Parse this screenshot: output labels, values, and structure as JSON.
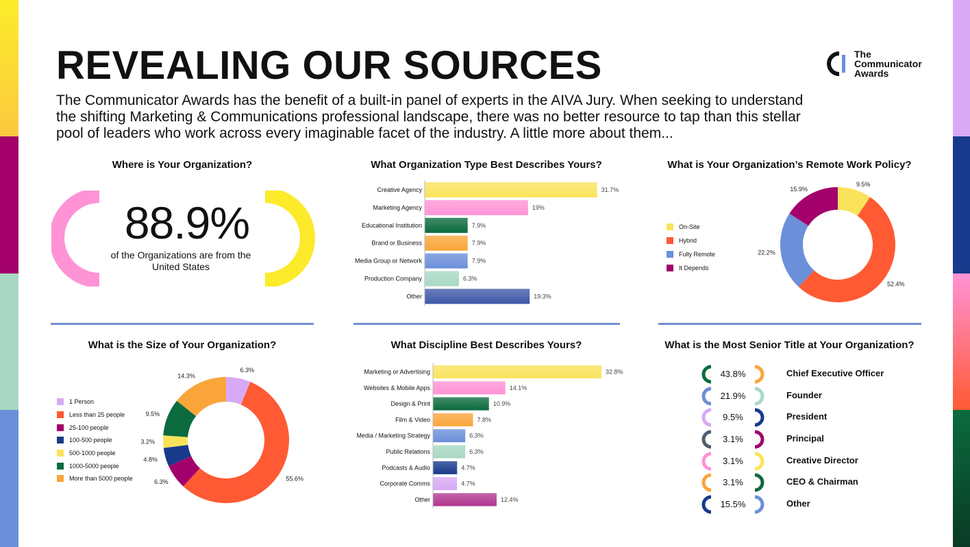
{
  "header": {
    "title": "REVEALING OUR SOURCES",
    "intro": "The Communicator Awards has the benefit of a built-in panel of experts in the AIVA Jury. When seeking to understand the shifting Marketing & Communications professional landscape, there was no better resource to tap than this stellar pool of leaders who work across every imaginable facet of the industry. A little more about them...",
    "logo_lines": [
      "The",
      "Communicator",
      "Awards"
    ]
  },
  "colors": {
    "yellow": "#fae35b",
    "orange_red": "#ff5a33",
    "magenta": "#a3006b",
    "navy": "#183a8c",
    "green": "#0b6b3e",
    "orange": "#faa53a",
    "pink": "#ff93d6",
    "lilac": "#d8a9f5",
    "mint": "#a8d8c3",
    "blue": "#6b8fd9",
    "slate": "#4d5e70",
    "purple_mag": "#b0378f",
    "divider": "#6f8fd0"
  },
  "location": {
    "title": "Where is Your Organization?",
    "percent_label": "88.9%",
    "caption": "of the Organizations are from the United States"
  },
  "chart_data": [
    {
      "id": "org_type",
      "type": "bar",
      "orientation": "horizontal",
      "title": "What Organization Type Best Describes Yours?",
      "categories": [
        "Creative Agency",
        "Marketing Agency",
        "Educational Institution",
        "Brand or Business",
        "Media Group or Network",
        "Production Company",
        "Other"
      ],
      "values": [
        31.7,
        19,
        7.9,
        7.9,
        7.9,
        6.3,
        19.3
      ],
      "labels": [
        "31.7%",
        "19%",
        "7.9%",
        "7.9%",
        "7.9%",
        "6.3%",
        "19.3%"
      ],
      "colors": [
        "#fae35b",
        "#ff93d6",
        "#0b6b3e",
        "#faa53a",
        "#6b8fd9",
        "#a8d8c3",
        "#3f58a8"
      ],
      "xlim": [
        0,
        32
      ]
    },
    {
      "id": "remote_policy",
      "type": "pie",
      "donut": true,
      "title": "What is Your Organization’s Remote Work Policy?",
      "categories": [
        "On-Site",
        "Hybrid",
        "Fully Remote",
        "It Depends"
      ],
      "values": [
        9.5,
        52.4,
        22.2,
        15.9
      ],
      "labels": [
        "9.5%",
        "52.4%",
        "22.2%",
        "15.9%"
      ],
      "colors": [
        "#fae35b",
        "#ff5a33",
        "#6b8fd9",
        "#a3006b"
      ],
      "legend": "left"
    },
    {
      "id": "org_size",
      "type": "pie",
      "donut": true,
      "title": "What is the Size of Your Organization?",
      "categories": [
        "1 Person",
        "Less than 25 people",
        "25-100 people",
        "100-500 people",
        "500-1000 people",
        "1000-5000 people",
        "More than 5000 people"
      ],
      "values": [
        6.3,
        55.6,
        6.3,
        4.8,
        3.2,
        9.5,
        14.3
      ],
      "labels": [
        "6.3%",
        "55.6%",
        "6.3%",
        "4.8%",
        "3.2%",
        "9.5%",
        "14.3%"
      ],
      "colors": [
        "#d8a9f5",
        "#ff5a33",
        "#a3006b",
        "#183a8c",
        "#fae35b",
        "#0b6b3e",
        "#faa53a"
      ],
      "legend": "left"
    },
    {
      "id": "discipline",
      "type": "bar",
      "orientation": "horizontal",
      "title": "What Discipline Best Describes Yours?",
      "categories": [
        "Marketing or Advertising",
        "Websites & Mobile Apps",
        "Design & Print",
        "Film & Video",
        "Media / Marketing Strategy",
        "Public Relations",
        "Podcasts & Audio",
        "Corporate Comms",
        "Other"
      ],
      "values": [
        32.8,
        14.1,
        10.9,
        7.8,
        6.3,
        6.3,
        4.7,
        4.7,
        12.4
      ],
      "labels": [
        "32.8%",
        "14.1%",
        "10.9%",
        "7.8%",
        "6.3%",
        "6.3%",
        "4.7%",
        "4.7%",
        "12.4%"
      ],
      "colors": [
        "#fae35b",
        "#ff93d6",
        "#0b6b3e",
        "#faa53a",
        "#6b8fd9",
        "#a8d8c3",
        "#183a8c",
        "#d8a9f5",
        "#b0378f"
      ],
      "xlim": [
        0,
        32.8
      ]
    },
    {
      "id": "senior_title",
      "type": "table",
      "title": "What is the Most Senior Title at Your Organization?",
      "categories": [
        "Chief Executive Officer",
        "Founder",
        "President",
        "Principal",
        "Creative Director",
        "CEO & Chairman",
        "Other"
      ],
      "values": [
        43.8,
        21.9,
        9.5,
        3.1,
        3.1,
        3.1,
        15.5
      ],
      "labels": [
        "43.8%",
        "21.9%",
        "9.5%",
        "3.1%",
        "3.1%",
        "3.1%",
        "15.5%"
      ],
      "left_colors": [
        "#0b6b3e",
        "#6b8fd9",
        "#d8a9f5",
        "#4d5e70",
        "#ff93d6",
        "#faa53a",
        "#183a8c"
      ],
      "right_colors": [
        "#faa53a",
        "#a8d8c3",
        "#183a8c",
        "#a3006b",
        "#fae35b",
        "#0b6b3e",
        "#6b8fd9"
      ]
    }
  ]
}
